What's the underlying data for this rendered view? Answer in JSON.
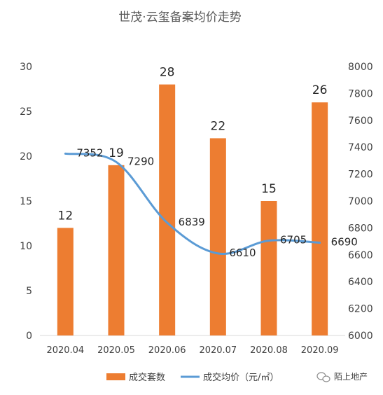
{
  "chart_data": {
    "type": "bar+line",
    "title": "世茂·云玺备案均价走势",
    "categories": [
      "2020.04",
      "2020.05",
      "2020.06",
      "2020.07",
      "2020.08",
      "2020.09"
    ],
    "series": [
      {
        "name": "成交套数",
        "type": "bar",
        "axis": "left",
        "color": "#ED7D31",
        "values": [
          12,
          19,
          28,
          22,
          15,
          26
        ]
      },
      {
        "name": "成交均价（元/㎡）",
        "type": "line",
        "axis": "right",
        "color": "#5B9BD5",
        "values": [
          7352,
          7290,
          6839,
          6610,
          6705,
          6690
        ]
      }
    ],
    "y_left": {
      "min": 0,
      "max": 30,
      "step": 5,
      "ticks": [
        "0",
        "5",
        "10",
        "15",
        "20",
        "25",
        "30"
      ]
    },
    "y_right": {
      "min": 6000,
      "max": 8000,
      "step": 200,
      "ticks": [
        "6000",
        "6200",
        "6400",
        "6600",
        "6800",
        "7000",
        "7200",
        "7400",
        "7600",
        "7800",
        "8000"
      ]
    },
    "grid": false,
    "legend_position": "bottom"
  },
  "watermark": {
    "text": "陌上地产",
    "icon": "wechat-icon"
  }
}
